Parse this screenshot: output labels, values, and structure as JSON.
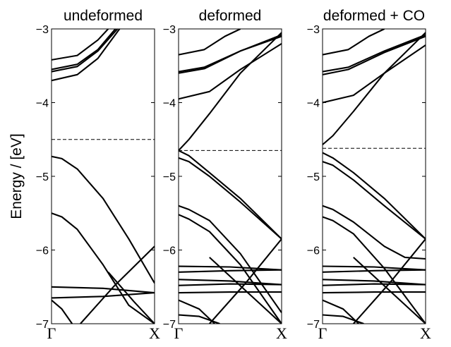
{
  "figure": {
    "ylabel": "Energy / [eV]",
    "ylim": [
      -7,
      -3
    ],
    "yticks": [
      "−3",
      "−4",
      "−5",
      "−6",
      "−7"
    ],
    "xticks": [
      "Γ",
      "X"
    ]
  },
  "chart_data": [
    {
      "type": "line",
      "title": "undeformed",
      "xlabel": "",
      "ylabel": "Energy / [eV]",
      "xlim": [
        0,
        1
      ],
      "ylim": [
        -7,
        -3
      ],
      "x_ticks": [
        "Γ",
        "X"
      ],
      "fermi_level": -4.5,
      "series": [
        {
          "x": [
            0,
            0.25,
            0.45,
            0.55
          ],
          "y": [
            -3.42,
            -3.36,
            -3.15,
            -3.0
          ]
        },
        {
          "x": [
            0,
            0.25,
            0.45,
            0.62
          ],
          "y": [
            -3.55,
            -3.48,
            -3.28,
            -3.0
          ]
        },
        {
          "x": [
            0,
            0.25,
            0.45,
            0.64
          ],
          "y": [
            -3.58,
            -3.51,
            -3.3,
            -3.0
          ]
        },
        {
          "x": [
            0,
            0.25,
            0.45,
            0.66
          ],
          "y": [
            -3.7,
            -3.62,
            -3.4,
            -3.0
          ]
        },
        {
          "x": [
            0,
            0.1,
            0.25,
            0.5,
            0.75,
            1.0
          ],
          "y": [
            -4.73,
            -4.76,
            -4.9,
            -5.3,
            -5.85,
            -6.45
          ]
        },
        {
          "x": [
            0,
            0.1,
            0.25,
            0.5,
            0.75,
            1.0
          ],
          "y": [
            -5.5,
            -5.55,
            -5.72,
            -6.2,
            -6.75,
            -7.0
          ]
        },
        {
          "x": [
            0,
            0.5,
            1.0
          ],
          "y": [
            -6.5,
            -6.52,
            -6.58
          ]
        },
        {
          "x": [
            0,
            0.5,
            1.0
          ],
          "y": [
            -6.65,
            -6.63,
            -6.58
          ]
        },
        {
          "x": [
            0.28,
            0.6,
            1.0
          ],
          "y": [
            -7.0,
            -6.5,
            -5.95
          ]
        },
        {
          "x": [
            0.55,
            0.8,
            1.0
          ],
          "y": [
            -6.3,
            -6.7,
            -7.0
          ]
        },
        {
          "x": [
            0,
            0.1,
            0.2
          ],
          "y": [
            -6.68,
            -6.8,
            -7.0
          ]
        }
      ]
    },
    {
      "type": "line",
      "title": "deformed",
      "xlabel": "",
      "ylabel": "",
      "xlim": [
        0,
        1
      ],
      "ylim": [
        -7,
        -3
      ],
      "x_ticks": [
        "Γ",
        "X"
      ],
      "fermi_level": -4.65,
      "series": [
        {
          "x": [
            0,
            0.25,
            0.45,
            0.6
          ],
          "y": [
            -3.35,
            -3.28,
            -3.1,
            -3.0
          ]
        },
        {
          "x": [
            0,
            0.25,
            0.6,
            1.0
          ],
          "y": [
            -3.58,
            -3.52,
            -3.3,
            -3.08
          ]
        },
        {
          "x": [
            0,
            0.25,
            0.6,
            1.0
          ],
          "y": [
            -3.6,
            -3.54,
            -3.3,
            -3.1
          ]
        },
        {
          "x": [
            0,
            0.3,
            0.6,
            1.0
          ],
          "y": [
            -3.95,
            -3.85,
            -3.55,
            -3.2
          ]
        },
        {
          "x": [
            0,
            0.1,
            0.3,
            0.6,
            1.0
          ],
          "y": [
            -4.65,
            -4.5,
            -4.15,
            -3.6,
            -3.05
          ]
        },
        {
          "x": [
            0,
            0.1,
            0.3,
            0.6,
            1.0
          ],
          "y": [
            -4.65,
            -4.72,
            -4.95,
            -5.3,
            -5.85
          ]
        },
        {
          "x": [
            0,
            0.1,
            0.3,
            0.6,
            1.0
          ],
          "y": [
            -4.75,
            -4.8,
            -5.0,
            -5.35,
            -5.85
          ]
        },
        {
          "x": [
            0,
            0.1,
            0.3,
            0.6,
            1.0
          ],
          "y": [
            -5.4,
            -5.45,
            -5.6,
            -6.05,
            -6.85
          ]
        },
        {
          "x": [
            0,
            0.1,
            0.3,
            0.6,
            1.0
          ],
          "y": [
            -5.52,
            -5.58,
            -5.75,
            -6.2,
            -7.0
          ]
        },
        {
          "x": [
            0,
            0.5,
            1.0
          ],
          "y": [
            -6.22,
            -6.23,
            -6.27
          ]
        },
        {
          "x": [
            0,
            0.5,
            1.0
          ],
          "y": [
            -6.3,
            -6.28,
            -6.27
          ]
        },
        {
          "x": [
            0,
            0.5,
            1.0
          ],
          "y": [
            -6.4,
            -6.42,
            -6.47
          ]
        },
        {
          "x": [
            0,
            0.5,
            1.0
          ],
          "y": [
            -6.48,
            -6.46,
            -6.47
          ]
        },
        {
          "x": [
            0,
            0.5,
            1.0
          ],
          "y": [
            -6.58,
            -6.57,
            -6.57
          ]
        },
        {
          "x": [
            0.3,
            0.65,
            1.0
          ],
          "y": [
            -7.0,
            -6.45,
            -5.85
          ]
        },
        {
          "x": [
            0.3,
            0.65,
            1.0
          ],
          "y": [
            -6.1,
            -6.55,
            -7.0
          ]
        },
        {
          "x": [
            0,
            0.2,
            0.4
          ],
          "y": [
            -6.88,
            -6.9,
            -7.0
          ]
        },
        {
          "x": [
            0,
            0.2,
            0.35
          ],
          "y": [
            -6.68,
            -6.8,
            -7.0
          ]
        }
      ]
    },
    {
      "type": "line",
      "title": "deformed + CO",
      "xlabel": "",
      "ylabel": "",
      "xlim": [
        0,
        1
      ],
      "ylim": [
        -7,
        -3
      ],
      "x_ticks": [
        "Γ",
        "X"
      ],
      "fermi_level": -4.62,
      "series": [
        {
          "x": [
            0,
            0.25,
            0.45,
            0.6
          ],
          "y": [
            -3.35,
            -3.28,
            -3.1,
            -3.0
          ]
        },
        {
          "x": [
            0,
            0.25,
            0.6,
            1.0
          ],
          "y": [
            -3.58,
            -3.52,
            -3.3,
            -3.08
          ]
        },
        {
          "x": [
            0,
            0.25,
            0.6,
            1.0
          ],
          "y": [
            -3.62,
            -3.55,
            -3.32,
            -3.1
          ]
        },
        {
          "x": [
            0,
            0.3,
            0.6,
            1.0
          ],
          "y": [
            -4.0,
            -3.9,
            -3.6,
            -3.22
          ]
        },
        {
          "x": [
            0,
            0.1,
            0.3,
            0.6,
            1.0
          ],
          "y": [
            -4.57,
            -4.45,
            -4.12,
            -3.6,
            -3.05
          ]
        },
        {
          "x": [
            0,
            0.1,
            0.3,
            0.6,
            1.0
          ],
          "y": [
            -4.68,
            -4.75,
            -4.95,
            -5.3,
            -5.85
          ]
        },
        {
          "x": [
            0,
            0.1,
            0.3,
            0.6,
            1.0
          ],
          "y": [
            -4.8,
            -4.85,
            -5.05,
            -5.4,
            -5.85
          ]
        },
        {
          "x": [
            0,
            0.1,
            0.3,
            0.6,
            0.8,
            1.0
          ],
          "y": [
            -5.4,
            -5.45,
            -5.62,
            -5.95,
            -6.1,
            -6.12
          ]
        },
        {
          "x": [
            0,
            0.1,
            0.3,
            0.6,
            1.0
          ],
          "y": [
            -5.55,
            -5.6,
            -5.78,
            -6.25,
            -7.0
          ]
        },
        {
          "x": [
            0,
            0.5,
            1.0
          ],
          "y": [
            -6.22,
            -6.23,
            -6.27
          ]
        },
        {
          "x": [
            0,
            0.5,
            1.0
          ],
          "y": [
            -6.3,
            -6.28,
            -6.27
          ]
        },
        {
          "x": [
            0,
            0.5,
            1.0
          ],
          "y": [
            -6.4,
            -6.42,
            -6.47
          ]
        },
        {
          "x": [
            0,
            0.5,
            1.0
          ],
          "y": [
            -6.48,
            -6.46,
            -6.47
          ]
        },
        {
          "x": [
            0,
            0.5,
            1.0
          ],
          "y": [
            -6.58,
            -6.57,
            -6.57
          ]
        },
        {
          "x": [
            0.3,
            0.65,
            1.0
          ],
          "y": [
            -7.0,
            -6.45,
            -5.85
          ]
        },
        {
          "x": [
            0.3,
            0.65,
            1.0
          ],
          "y": [
            -6.1,
            -6.55,
            -7.0
          ]
        },
        {
          "x": [
            0,
            0.2,
            0.4
          ],
          "y": [
            -6.88,
            -6.9,
            -7.0
          ]
        },
        {
          "x": [
            0,
            0.2,
            0.35
          ],
          "y": [
            -6.68,
            -6.8,
            -7.0
          ]
        }
      ]
    }
  ]
}
